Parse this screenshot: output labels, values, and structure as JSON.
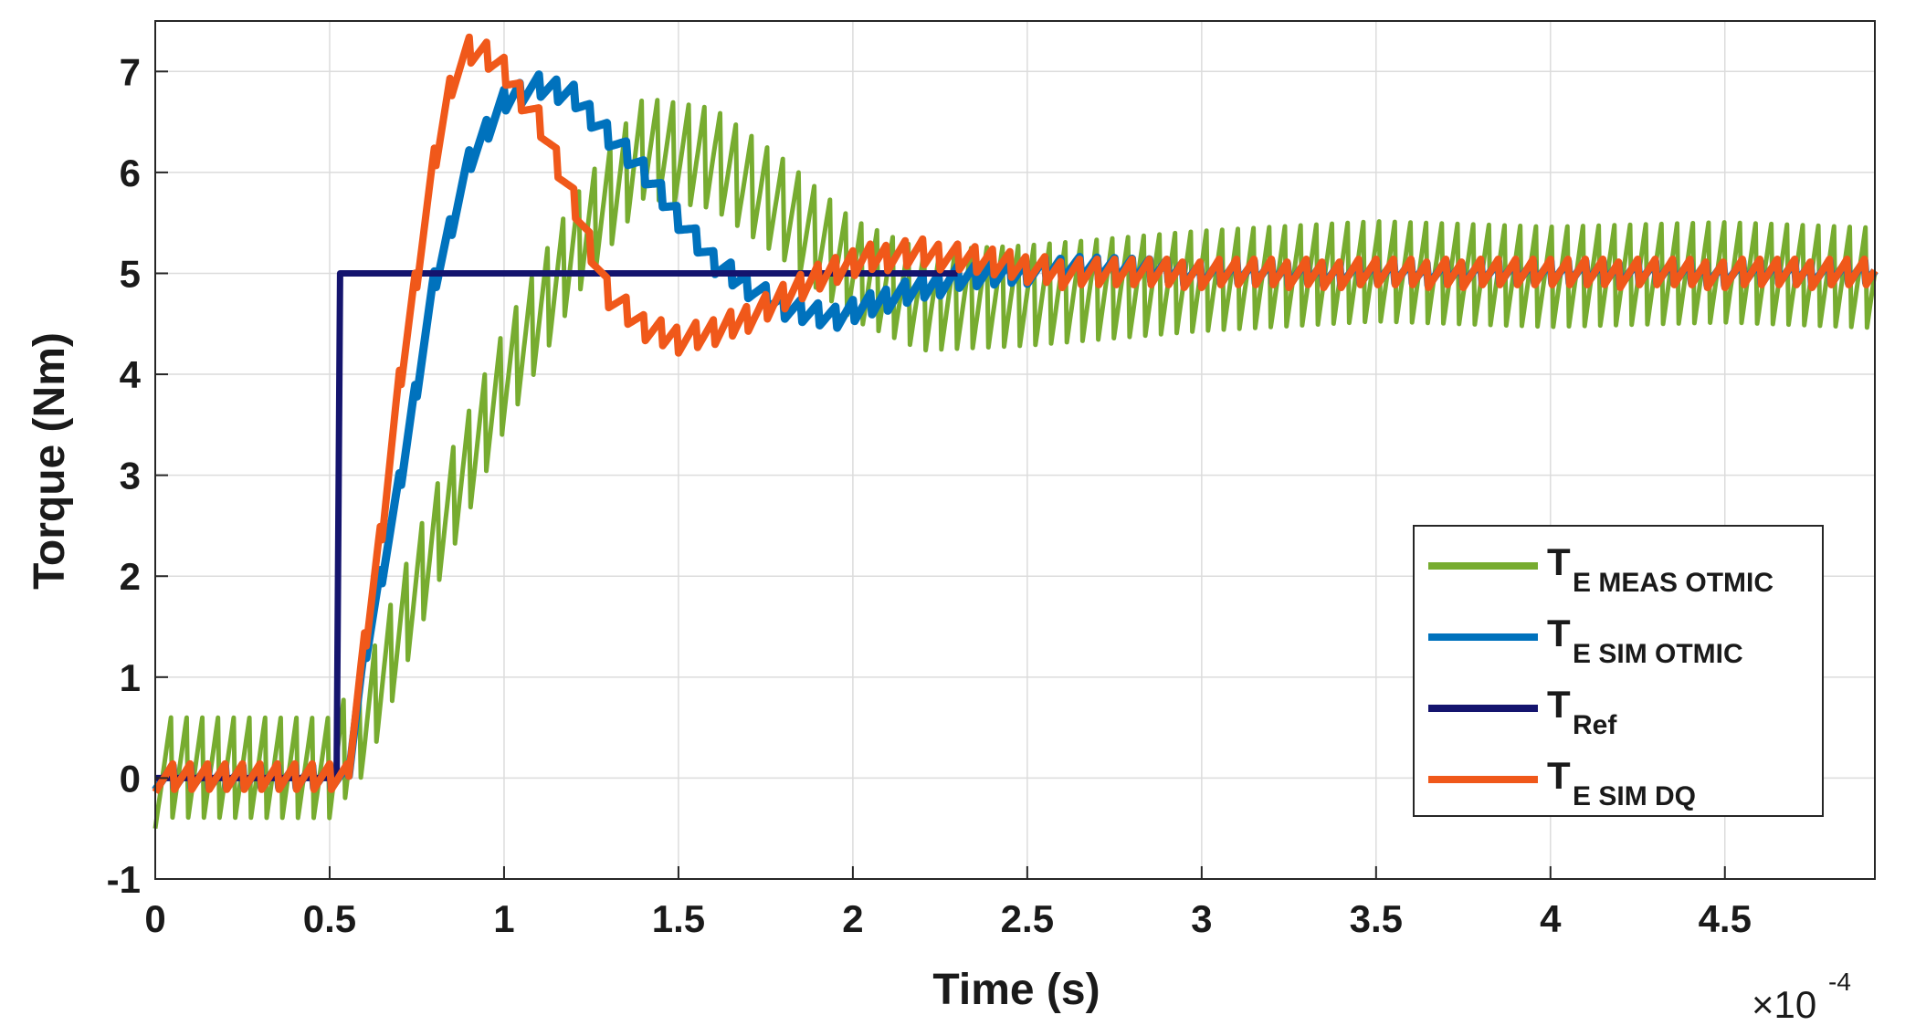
{
  "chart_data": {
    "type": "line",
    "title": "",
    "xlabel": "Time (s)",
    "ylabel": "Torque (Nm)",
    "x_scale_label": {
      "base": "×10",
      "exponent": "-4"
    },
    "xlim": [
      0,
      4.93
    ],
    "ylim": [
      -1,
      7.5
    ],
    "xticks": [
      0,
      0.5,
      1,
      1.5,
      2,
      2.5,
      3,
      3.5,
      4,
      4.5
    ],
    "xtick_labels": [
      "0",
      "0.5",
      "1",
      "1.5",
      "2",
      "2.5",
      "3",
      "3.5",
      "4",
      "4.5"
    ],
    "yticks": [
      -1,
      0,
      1,
      2,
      3,
      4,
      5,
      6,
      7
    ],
    "ytick_labels": [
      "-1",
      "0",
      "1",
      "2",
      "3",
      "4",
      "5",
      "6",
      "7"
    ],
    "grid": true,
    "legend_position": "bottom-right",
    "series": [
      {
        "name": "T_E MEAS OTMIC",
        "label_main": "T",
        "label_sub": "E MEAS OTMIC",
        "color": "#77ac30",
        "ripple": 0.55,
        "x": [
          0,
          0.5,
          0.6,
          0.8,
          1.0,
          1.2,
          1.4,
          1.6,
          1.8,
          2.0,
          2.2,
          2.5,
          3.0,
          3.5,
          4.0,
          4.5,
          4.93
        ],
        "y": [
          0.05,
          0.05,
          0.5,
          2.3,
          3.9,
          5.2,
          6.2,
          6.1,
          5.6,
          5.0,
          4.7,
          4.75,
          4.9,
          5.0,
          4.95,
          5.0,
          4.95
        ]
      },
      {
        "name": "T_E SIM OTMIC",
        "label_main": "T",
        "label_sub": "E SIM OTMIC",
        "color": "#0072bd",
        "ripple": 0.12,
        "x": [
          0,
          0.55,
          0.6,
          0.7,
          0.8,
          0.9,
          1.0,
          1.05,
          1.1,
          1.2,
          1.4,
          1.6,
          1.8,
          1.95,
          2.1,
          2.3,
          2.6,
          3.0,
          4.93
        ],
        "y": [
          0,
          0,
          1.2,
          2.9,
          4.9,
          6.1,
          6.7,
          6.8,
          6.85,
          6.75,
          6.0,
          5.1,
          4.65,
          4.55,
          4.75,
          4.95,
          5.05,
          5.0,
          5.0
        ]
      },
      {
        "name": "T_Ref",
        "label_main": "T",
        "label_sub": "Ref",
        "color": "#14146e",
        "ripple": 0,
        "x": [
          0,
          0.52,
          0.53,
          2.3
        ],
        "y": [
          0,
          0,
          5,
          5
        ]
      },
      {
        "name": "T_E SIM DQ",
        "label_main": "T",
        "label_sub": "E SIM DQ",
        "color": "#f0581a",
        "ripple": 0.14,
        "x": [
          0,
          0.55,
          0.6,
          0.65,
          0.7,
          0.75,
          0.8,
          0.85,
          0.9,
          0.95,
          1.0,
          1.1,
          1.2,
          1.3,
          1.4,
          1.5,
          1.6,
          1.75,
          1.9,
          2.05,
          2.2,
          2.4,
          2.6,
          3.0,
          4.93
        ],
        "y": [
          0,
          0,
          1.3,
          2.5,
          3.9,
          5.0,
          6.1,
          6.9,
          7.2,
          7.15,
          7.0,
          6.5,
          5.7,
          4.8,
          4.45,
          4.35,
          4.4,
          4.65,
          4.95,
          5.15,
          5.2,
          5.1,
          5.0,
          5.0,
          5.0
        ]
      }
    ]
  }
}
